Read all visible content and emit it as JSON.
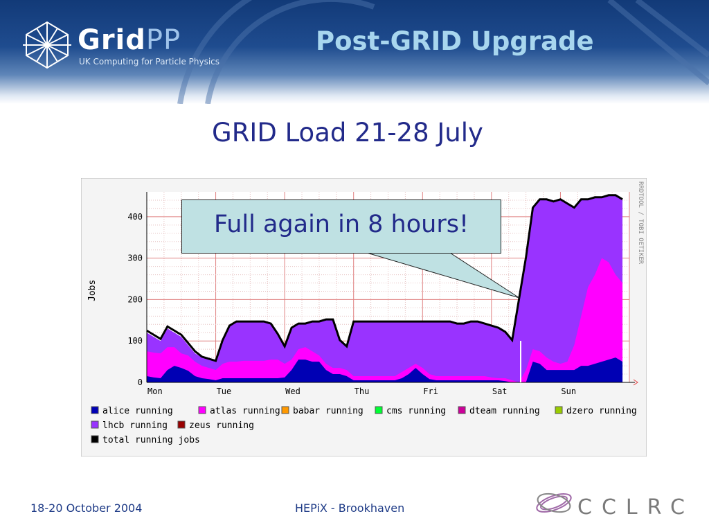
{
  "header": {
    "logo_text_bold": "Grid",
    "logo_text_light": "PP",
    "logo_tagline": "UK Computing for Particle Physics",
    "slide_title": "Post-GRID Upgrade"
  },
  "subtitle": "GRID Load 21-28 July",
  "callout": "Full again in 8 hours!",
  "footer": {
    "date": "18-20 October 2004",
    "event": "HEPiX - Brookhaven",
    "org_logo": "CCLRC"
  },
  "colors": {
    "alice": "#0000b4",
    "atlas": "#ff00ff",
    "babar": "#ff9900",
    "cms": "#00ff33",
    "dteam": "#cc0099",
    "dzero": "#99cc00",
    "lhcb": "#9933ff",
    "zeus": "#990000",
    "total": "#000000"
  },
  "chart_data": {
    "type": "area",
    "ylabel": "Jobs",
    "side_label": "RRDTOOL / TOBI OETIKER",
    "x_ticks": [
      "Mon",
      "Tue",
      "Wed",
      "Thu",
      "Fri",
      "Sat",
      "Sun"
    ],
    "y_ticks": [
      "0",
      "100",
      "200",
      "300",
      "400"
    ],
    "ylim": [
      0,
      460
    ],
    "x": [
      0,
      0.1,
      0.2,
      0.3,
      0.4,
      0.5,
      0.6,
      0.7,
      0.8,
      0.9,
      1.0,
      1.1,
      1.2,
      1.3,
      1.4,
      1.5,
      1.6,
      1.7,
      1.8,
      1.9,
      2.0,
      2.1,
      2.2,
      2.3,
      2.4,
      2.5,
      2.6,
      2.7,
      2.8,
      2.9,
      3.0,
      3.1,
      3.2,
      3.3,
      3.4,
      3.5,
      3.6,
      3.7,
      3.8,
      3.9,
      4.0,
      4.1,
      4.2,
      4.3,
      4.4,
      4.5,
      4.6,
      4.7,
      4.8,
      4.9,
      5.0,
      5.1,
      5.2,
      5.3,
      5.4,
      5.5,
      5.6,
      5.7,
      5.8,
      5.9,
      6.0,
      6.1,
      6.2,
      6.3,
      6.4,
      6.5,
      6.6,
      6.7,
      6.8,
      6.9
    ],
    "legend": [
      {
        "name": "alice running",
        "key": "alice"
      },
      {
        "name": "atlas running",
        "key": "atlas"
      },
      {
        "name": "babar running",
        "key": "babar"
      },
      {
        "name": "cms running",
        "key": "cms"
      },
      {
        "name": "dteam running",
        "key": "dteam"
      },
      {
        "name": "dzero running",
        "key": "dzero"
      },
      {
        "name": "lhcb running",
        "key": "lhcb"
      },
      {
        "name": "zeus running",
        "key": "zeus"
      },
      {
        "name": "total running jobs",
        "key": "total"
      }
    ],
    "series": [
      {
        "name": "alice running",
        "key": "alice",
        "values": [
          15,
          12,
          10,
          30,
          40,
          35,
          28,
          15,
          10,
          8,
          5,
          10,
          10,
          10,
          10,
          10,
          10,
          10,
          10,
          10,
          12,
          30,
          55,
          55,
          50,
          50,
          30,
          20,
          20,
          15,
          5,
          5,
          5,
          5,
          5,
          5,
          5,
          10,
          20,
          35,
          20,
          8,
          5,
          5,
          5,
          5,
          5,
          5,
          5,
          5,
          5,
          5,
          3,
          0,
          0,
          0,
          50,
          45,
          30,
          30,
          30,
          30,
          30,
          40,
          40,
          45,
          50,
          55,
          60,
          50
        ]
      },
      {
        "name": "atlas running",
        "key": "atlas",
        "values": [
          75,
          72,
          70,
          85,
          85,
          70,
          65,
          50,
          40,
          35,
          30,
          45,
          50,
          50,
          52,
          52,
          52,
          52,
          55,
          55,
          45,
          55,
          80,
          85,
          75,
          65,
          45,
          35,
          35,
          30,
          15,
          15,
          15,
          15,
          15,
          15,
          15,
          25,
          35,
          45,
          35,
          20,
          15,
          15,
          15,
          15,
          15,
          15,
          15,
          15,
          12,
          10,
          10,
          5,
          0,
          30,
          80,
          75,
          60,
          50,
          45,
          50,
          90,
          160,
          230,
          260,
          300,
          290,
          260,
          240
        ]
      },
      {
        "name": "lhcb running",
        "key": "lhcb",
        "values": [
          120,
          110,
          100,
          130,
          120,
          110,
          90,
          70,
          60,
          55,
          50,
          100,
          135,
          145,
          145,
          145,
          145,
          145,
          140,
          115,
          85,
          130,
          140,
          140,
          145,
          145,
          150,
          150,
          100,
          85,
          145,
          145,
          145,
          145,
          145,
          145,
          145,
          145,
          145,
          145,
          145,
          145,
          145,
          145,
          145,
          140,
          140,
          145,
          145,
          140,
          135,
          130,
          120,
          100,
          200,
          300,
          420,
          440,
          440,
          435,
          440,
          430,
          420,
          440,
          440,
          445,
          445,
          450,
          450,
          440
        ]
      },
      {
        "name": "total running jobs",
        "key": "total",
        "values": [
          125,
          115,
          105,
          135,
          125,
          115,
          95,
          75,
          62,
          57,
          52,
          102,
          137,
          147,
          147,
          147,
          147,
          147,
          142,
          117,
          87,
          132,
          142,
          142,
          147,
          147,
          152,
          152,
          102,
          87,
          147,
          147,
          147,
          147,
          147,
          147,
          147,
          147,
          147,
          147,
          147,
          147,
          147,
          147,
          147,
          142,
          142,
          147,
          147,
          142,
          137,
          132,
          122,
          102,
          202,
          302,
          422,
          442,
          442,
          437,
          442,
          432,
          422,
          442,
          442,
          447,
          447,
          452,
          452,
          442
        ]
      }
    ]
  }
}
